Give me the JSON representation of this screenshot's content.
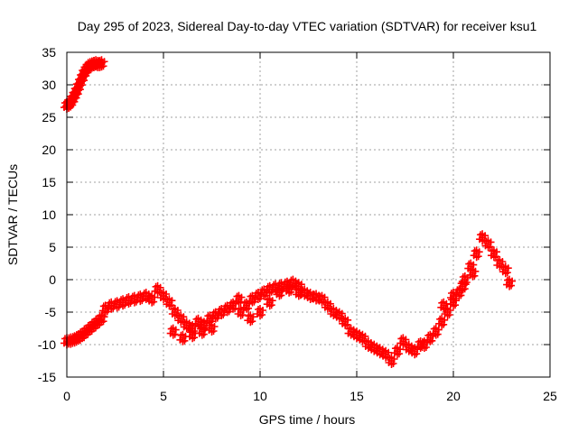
{
  "chart_data": {
    "type": "scatter",
    "title": "Day 295 of 2023, Sidereal Day-to-day VTEC variation (SDTVAR) for receiver ksu1",
    "xlabel": "GPS time / hours",
    "ylabel": "SDTVAR / TECUs",
    "xlim": [
      0,
      25
    ],
    "ylim": [
      -15,
      35
    ],
    "xticks": [
      0,
      5,
      10,
      15,
      20,
      25
    ],
    "yticks": [
      -15,
      -10,
      -5,
      0,
      5,
      10,
      15,
      20,
      25,
      30,
      35
    ],
    "grid": true,
    "marker": "plus",
    "series": [
      {
        "name": "ksu1",
        "color": "#ff0000",
        "x": [
          0.0,
          0.1,
          0.2,
          0.3,
          0.4,
          0.5,
          0.6,
          0.7,
          0.8,
          0.9,
          1.0,
          1.1,
          1.2,
          1.3,
          1.4,
          1.5,
          1.6,
          1.7,
          1.8,
          0.0,
          0.2,
          0.4,
          0.6,
          0.8,
          1.0,
          1.2,
          1.4,
          1.6,
          1.8,
          2.0,
          2.3,
          2.6,
          2.9,
          3.2,
          3.5,
          3.8,
          4.1,
          4.4,
          4.7,
          5.0,
          5.3,
          5.6,
          5.9,
          6.2,
          6.5,
          6.8,
          7.1,
          7.4,
          7.7,
          8.0,
          8.3,
          8.6,
          8.9,
          5.5,
          6.0,
          6.5,
          7.0,
          7.5,
          9.0,
          9.3,
          9.6,
          9.9,
          10.2,
          10.5,
          10.8,
          11.1,
          11.4,
          11.7,
          12.0,
          12.3,
          12.6,
          12.9,
          13.2,
          13.5,
          13.8,
          14.1,
          14.4,
          14.7,
          15.0,
          15.3,
          15.6,
          15.9,
          16.2,
          16.5,
          16.8,
          17.1,
          17.4,
          17.7,
          18.0,
          18.3,
          9.5,
          10.0,
          10.5,
          11.0,
          11.5,
          12.0,
          18.5,
          18.8,
          19.1,
          19.4,
          19.7,
          20.0,
          20.3,
          20.6,
          20.9,
          21.2,
          21.5,
          21.8,
          22.1,
          22.4,
          22.7,
          22.9,
          19.5,
          20.0,
          20.5,
          21.0
        ],
        "y": [
          26.8,
          27.0,
          27.3,
          27.8,
          28.4,
          29.0,
          29.7,
          30.4,
          31.1,
          31.8,
          32.3,
          32.7,
          33.0,
          33.1,
          33.2,
          33.3,
          33.2,
          33.2,
          33.3,
          -9.5,
          -9.4,
          -9.2,
          -8.9,
          -8.5,
          -8.0,
          -7.5,
          -7.0,
          -6.5,
          -6.0,
          -4.5,
          -4.0,
          -3.8,
          -3.5,
          -3.2,
          -3.0,
          -2.8,
          -2.5,
          -3.0,
          -1.5,
          -2.5,
          -3.5,
          -5.0,
          -6.0,
          -7.0,
          -7.5,
          -6.5,
          -7.0,
          -6.0,
          -5.5,
          -5.0,
          -4.5,
          -4.0,
          -3.0,
          -8.0,
          -9.0,
          -8.5,
          -8.0,
          -7.5,
          -5.0,
          -4.0,
          -3.0,
          -2.5,
          -2.0,
          -1.5,
          -1.2,
          -1.0,
          -0.8,
          -0.5,
          -1.0,
          -2.0,
          -2.5,
          -2.7,
          -3.0,
          -4.0,
          -5.0,
          -5.5,
          -6.5,
          -8.0,
          -8.5,
          -9.0,
          -10.0,
          -10.5,
          -11.0,
          -11.5,
          -12.5,
          -11.0,
          -9.5,
          -10.5,
          -11.0,
          -10.0,
          -6.0,
          -5.0,
          -3.5,
          -2.0,
          -1.5,
          -2.0,
          -10.0,
          -9.0,
          -8.0,
          -6.5,
          -5.0,
          -3.5,
          -2.0,
          0.0,
          2.0,
          4.0,
          6.5,
          5.5,
          4.0,
          2.5,
          1.5,
          -0.5,
          -4.0,
          -2.5,
          -1.0,
          1.0
        ]
      }
    ]
  }
}
